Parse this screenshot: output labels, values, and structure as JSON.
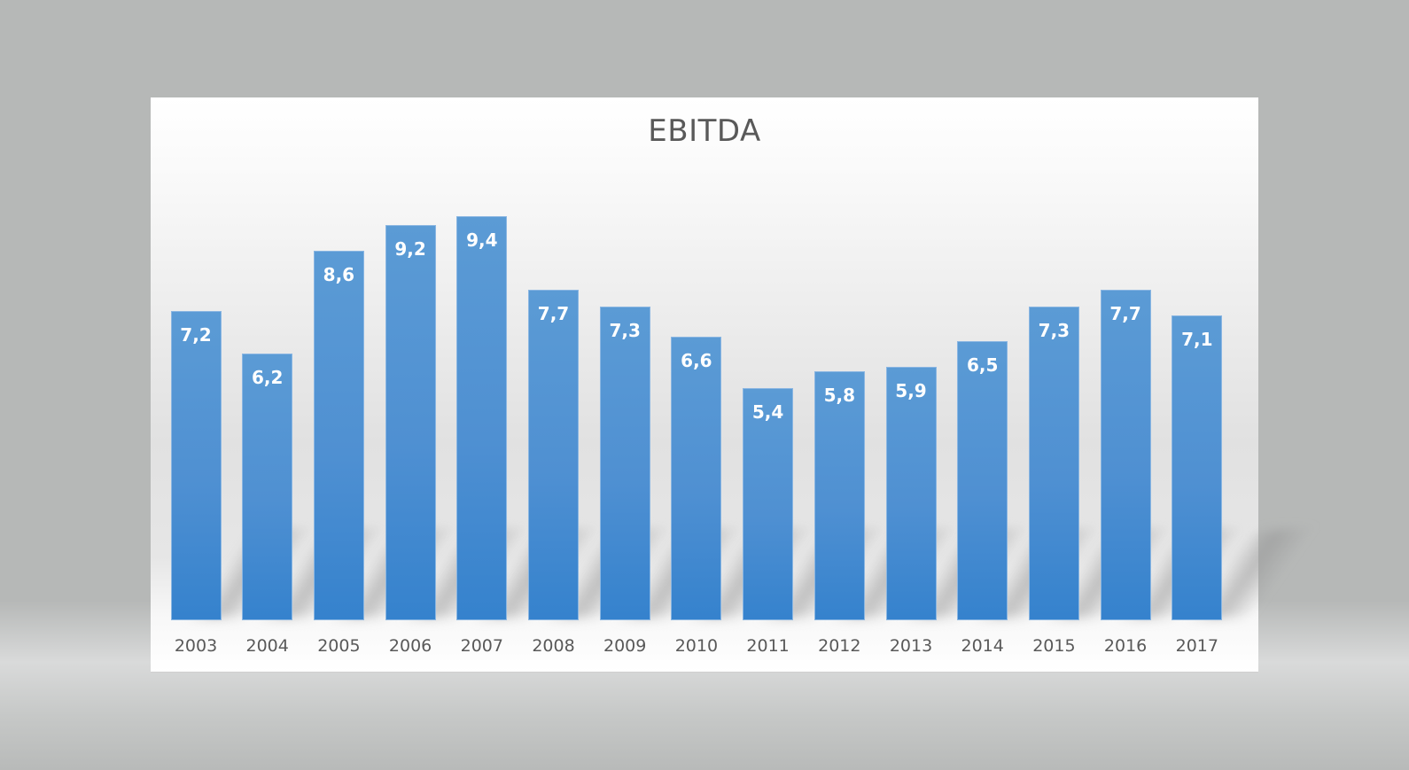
{
  "chart_data": {
    "type": "bar",
    "title": "EBITDA",
    "xlabel": "",
    "ylabel": "",
    "categories": [
      "2003",
      "2004",
      "2005",
      "2006",
      "2007",
      "2008",
      "2009",
      "2010",
      "2011",
      "2012",
      "2013",
      "2014",
      "2015",
      "2016",
      "2017"
    ],
    "values": [
      7.2,
      6.2,
      8.6,
      9.2,
      9.4,
      7.7,
      7.3,
      6.6,
      5.4,
      5.8,
      5.9,
      6.5,
      7.3,
      7.7,
      7.1
    ],
    "data_labels": [
      "7,2",
      "6,2",
      "8,6",
      "9,2",
      "9,4",
      "7,7",
      "7,3",
      "6,6",
      "5,4",
      "5,8",
      "5,9",
      "6,5",
      "7,3",
      "7,7",
      "7,1"
    ],
    "ylim": [
      0,
      10
    ],
    "grid": false,
    "legend": null,
    "colors": {
      "bar": "#5b9bd5",
      "bar_bottom": "#3582cd",
      "label": "#ffffff",
      "title": "#595959",
      "axis_text": "#595959",
      "background": "#b6b8b7"
    }
  }
}
